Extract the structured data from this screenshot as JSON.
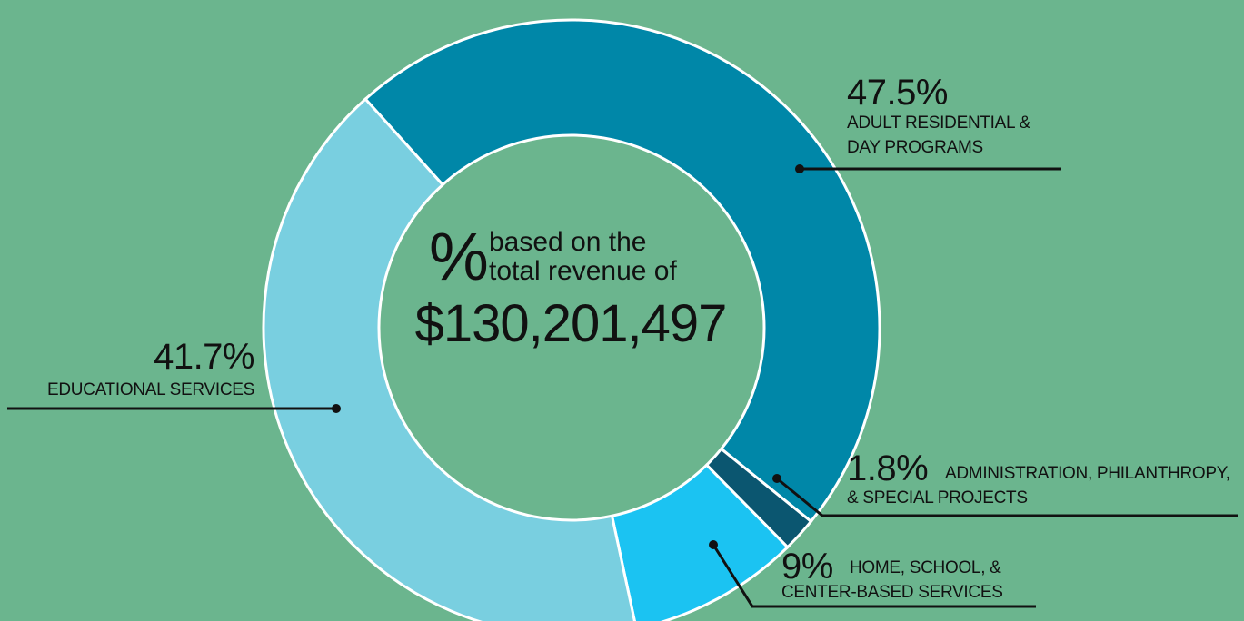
{
  "chart_data": {
    "type": "donut",
    "center_text": {
      "symbol": "%",
      "line1": "based on the",
      "line2": "total revenue of",
      "total": "$130,201,497"
    },
    "categories": [
      "ADULT RESIDENTIAL & DAY PROGRAMS",
      "ADMINISTRATION, PHILANTHROPY, & SPECIAL PROJECTS",
      "HOME, SCHOOL, & CENTER-BASED SERVICES",
      "EDUCATIONAL SERVICES"
    ],
    "values": [
      47.5,
      1.8,
      9,
      41.7
    ],
    "value_labels": [
      "47.5%",
      "1.8%",
      "9%",
      "41.7%"
    ],
    "colors": [
      "#0087a8",
      "#0b5670",
      "#1bc3f2",
      "#79cfe0"
    ]
  }
}
